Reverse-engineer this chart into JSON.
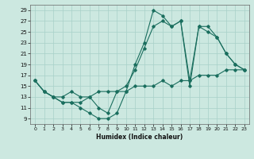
{
  "xlabel": "Humidex (Indice chaleur)",
  "bg_color": "#cce8e0",
  "line_color": "#1a6e5e",
  "grid_color": "#a8d0c8",
  "xlim": [
    -0.5,
    23.5
  ],
  "ylim": [
    8,
    30
  ],
  "yticks": [
    9,
    11,
    13,
    15,
    17,
    19,
    21,
    23,
    25,
    27,
    29
  ],
  "xticks": [
    0,
    1,
    2,
    3,
    4,
    5,
    6,
    7,
    8,
    9,
    10,
    11,
    12,
    13,
    14,
    15,
    16,
    17,
    18,
    19,
    20,
    21,
    22,
    23
  ],
  "series": [
    {
      "x": [
        0,
        1,
        2,
        3,
        4,
        5,
        6,
        7,
        8,
        9,
        10,
        11,
        12,
        13,
        14,
        15,
        16,
        17,
        18,
        19,
        20,
        21,
        22,
        23
      ],
      "y": [
        16,
        14,
        13,
        12,
        12,
        11,
        10,
        9,
        9,
        10,
        14,
        19,
        23,
        29,
        28,
        26,
        27,
        15,
        26,
        25,
        24,
        21,
        19,
        18
      ]
    },
    {
      "x": [
        0,
        1,
        2,
        3,
        4,
        5,
        6,
        7,
        8,
        9,
        10,
        11,
        12,
        13,
        14,
        15,
        16,
        17,
        18,
        19,
        20,
        21,
        22,
        23
      ],
      "y": [
        16,
        14,
        13,
        13,
        14,
        13,
        13,
        11,
        10,
        14,
        15,
        18,
        22,
        26,
        27,
        26,
        27,
        16,
        26,
        26,
        24,
        21,
        19,
        18
      ]
    },
    {
      "x": [
        0,
        1,
        2,
        3,
        4,
        5,
        6,
        7,
        8,
        9,
        10,
        11,
        12,
        13,
        14,
        15,
        16,
        17,
        18,
        19,
        20,
        21,
        22,
        23
      ],
      "y": [
        16,
        14,
        13,
        12,
        12,
        12,
        13,
        14,
        14,
        14,
        14,
        15,
        15,
        15,
        16,
        15,
        16,
        16,
        17,
        17,
        17,
        18,
        18,
        18
      ]
    }
  ]
}
